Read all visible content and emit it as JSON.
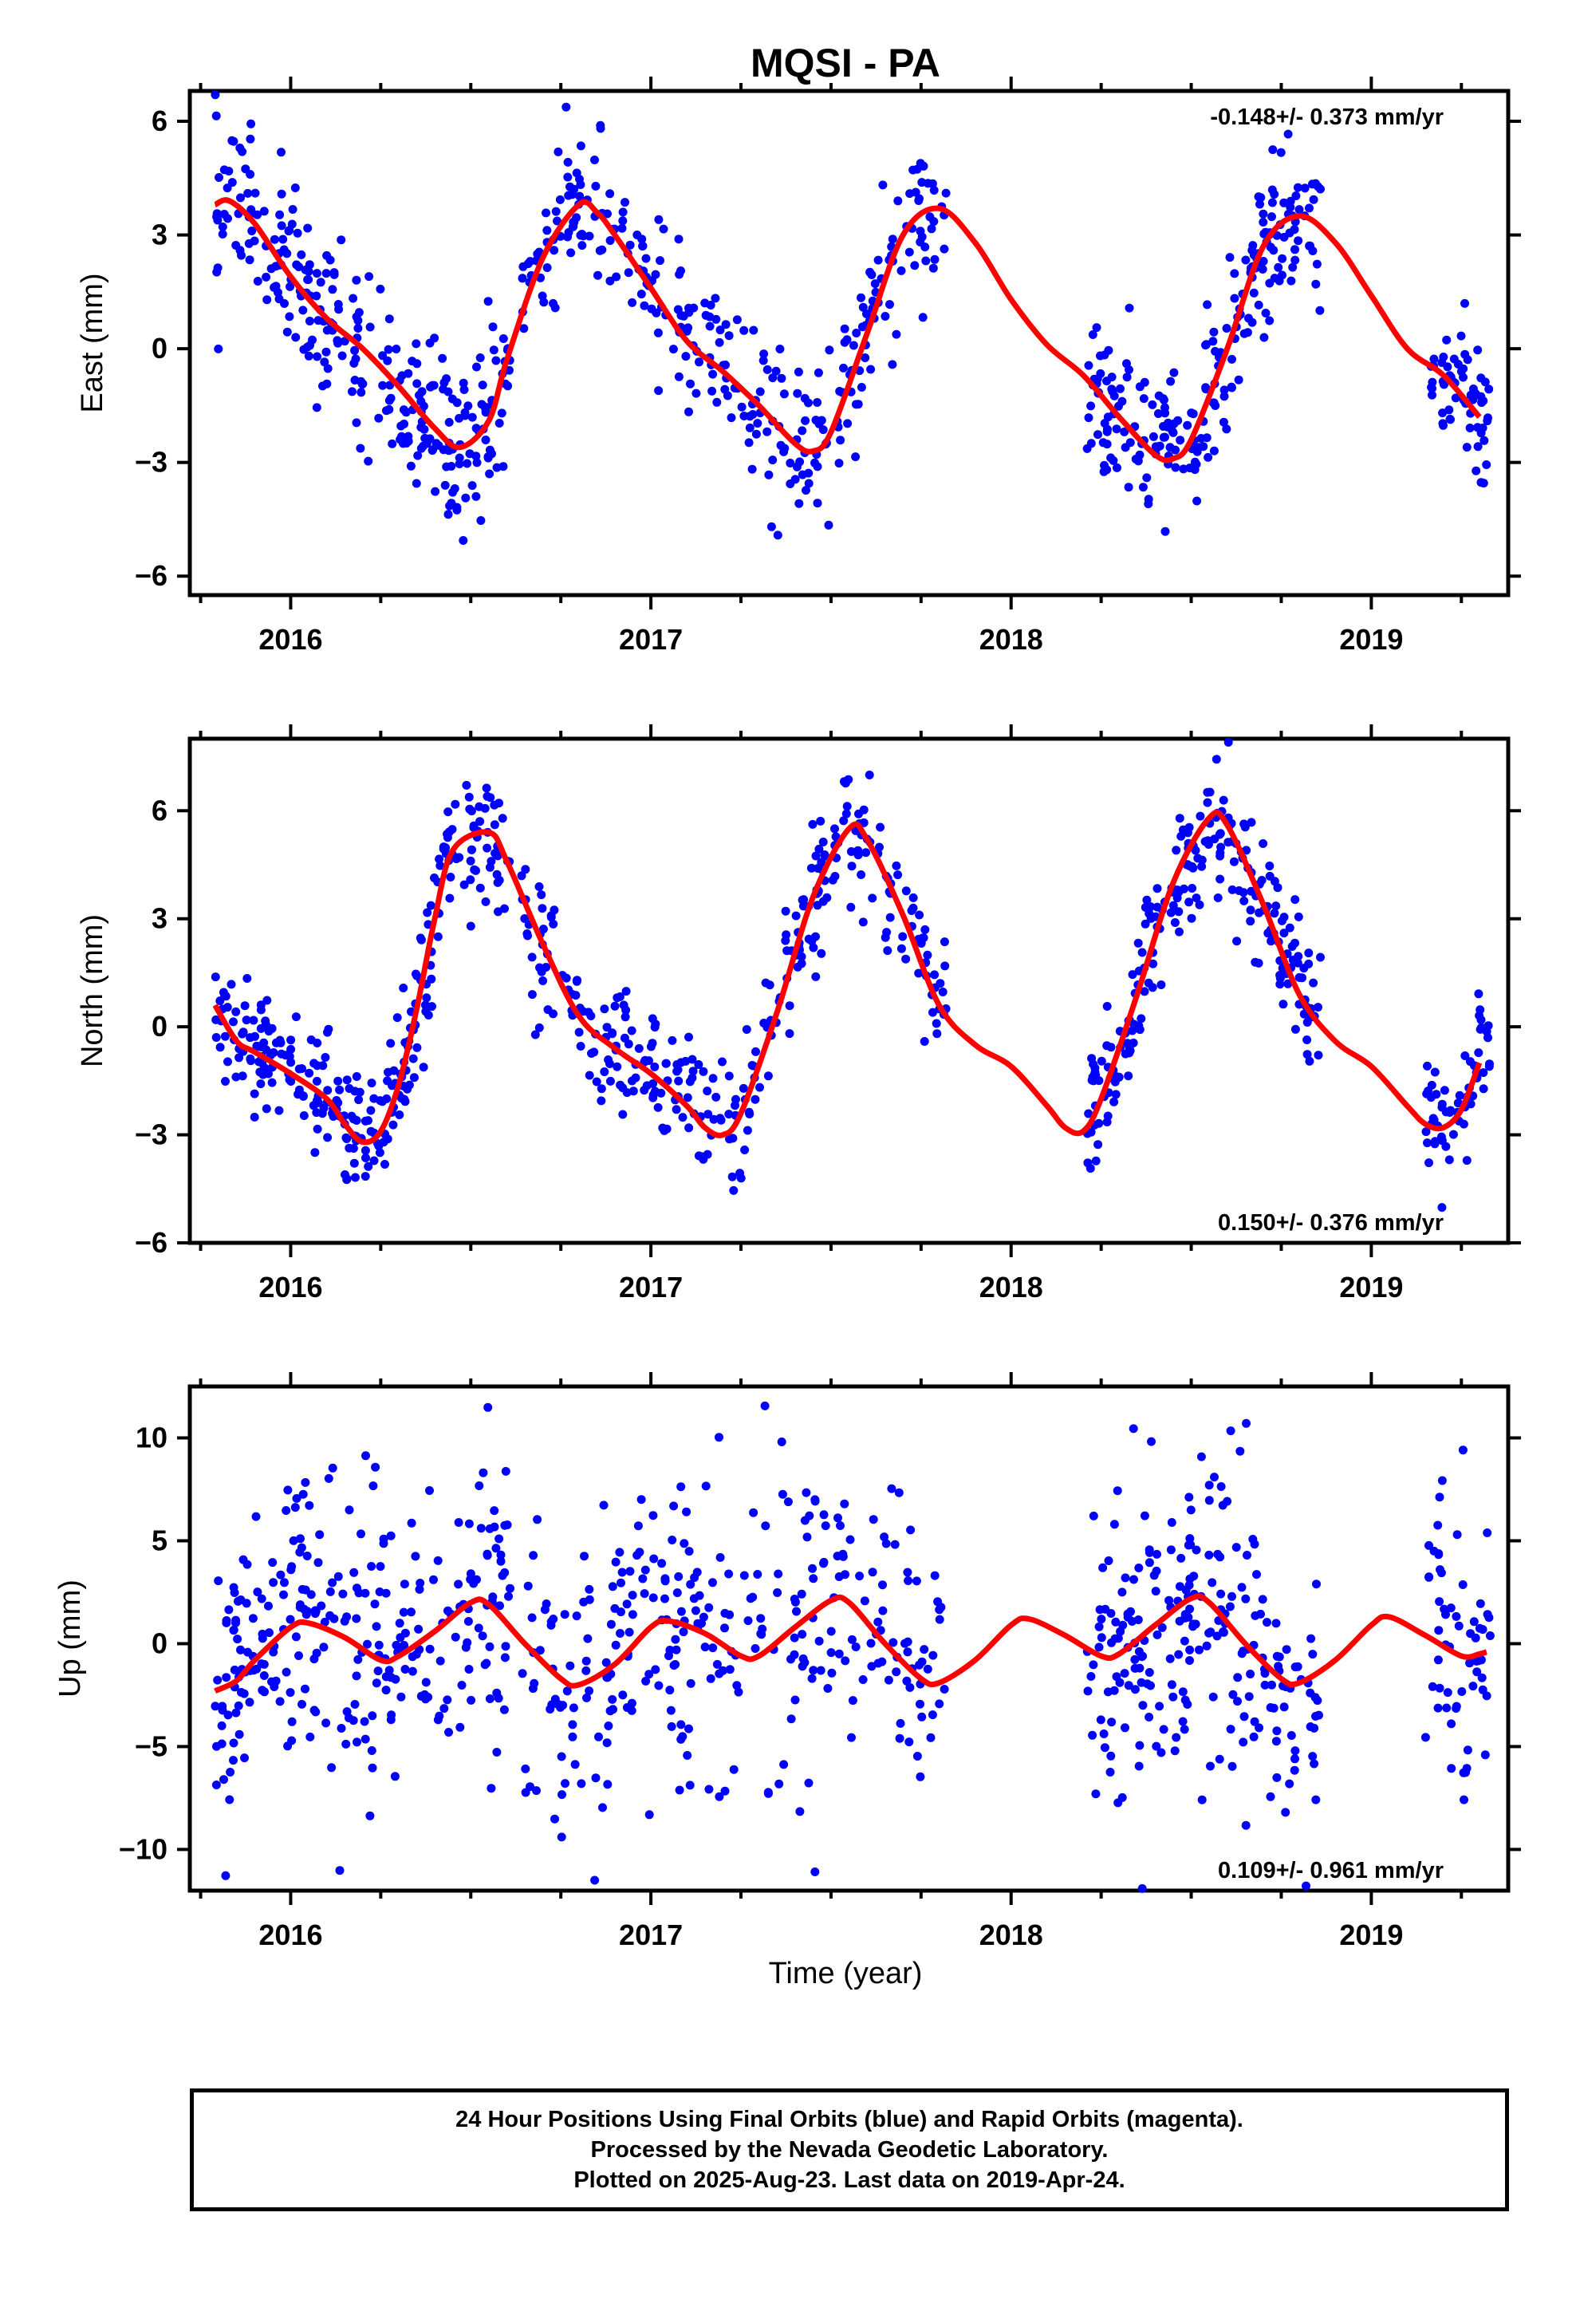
{
  "title": "MQSI - PA",
  "colors": {
    "final_orbits": "#0000ff",
    "rapid_orbits": "#ff00ff",
    "model": "#ff0000",
    "frame": "#000000"
  },
  "chart_data": [
    {
      "type": "scatter",
      "ylabel": "East (mm)",
      "xlabel": "",
      "rate": "-0.148+/- 0.373 mm/yr",
      "rate_position": "top-right",
      "xlim": [
        2015.72,
        2019.38
      ],
      "ylim": [
        -6.5,
        6.8
      ],
      "yticks": [
        -6,
        -3,
        0,
        3,
        6
      ],
      "xtick_labels": [
        "2016",
        "2017",
        "2018",
        "2019"
      ],
      "grid": false,
      "model": [
        [
          2015.79,
          3.8
        ],
        [
          2015.83,
          3.9
        ],
        [
          2015.9,
          3.3
        ],
        [
          2016.0,
          1.9
        ],
        [
          2016.1,
          0.8
        ],
        [
          2016.2,
          0.0
        ],
        [
          2016.3,
          -1.0
        ],
        [
          2016.4,
          -2.1
        ],
        [
          2016.47,
          -2.6
        ],
        [
          2016.55,
          -1.9
        ],
        [
          2016.6,
          -0.3
        ],
        [
          2016.7,
          2.4
        ],
        [
          2016.8,
          3.8
        ],
        [
          2016.85,
          3.6
        ],
        [
          2016.9,
          3.0
        ],
        [
          2017.0,
          1.6
        ],
        [
          2017.1,
          0.2
        ],
        [
          2017.2,
          -0.6
        ],
        [
          2017.3,
          -1.5
        ],
        [
          2017.4,
          -2.5
        ],
        [
          2017.45,
          -2.7
        ],
        [
          2017.5,
          -2.2
        ],
        [
          2017.6,
          0.4
        ],
        [
          2017.7,
          3.0
        ],
        [
          2017.8,
          3.7
        ],
        [
          2017.9,
          2.8
        ],
        [
          2018.0,
          1.3
        ],
        [
          2018.1,
          0.1
        ],
        [
          2018.2,
          -0.7
        ],
        [
          2018.3,
          -1.8
        ],
        [
          2018.4,
          -2.8
        ],
        [
          2018.45,
          -2.9
        ],
        [
          2018.5,
          -2.4
        ],
        [
          2018.6,
          0.0
        ],
        [
          2018.7,
          2.7
        ],
        [
          2018.8,
          3.5
        ],
        [
          2018.9,
          2.8
        ],
        [
          2019.0,
          1.4
        ],
        [
          2019.1,
          0.0
        ],
        [
          2019.2,
          -0.7
        ],
        [
          2019.3,
          -1.8
        ]
      ],
      "data_segments": [
        {
          "start": 2015.79,
          "end": 2016.61,
          "spread": 1.1,
          "count": 280
        },
        {
          "start": 2016.64,
          "end": 2017.82,
          "spread": 1.0,
          "count": 300
        },
        {
          "start": 2018.21,
          "end": 2018.86,
          "spread": 1.0,
          "count": 230
        },
        {
          "start": 2019.15,
          "end": 2019.33,
          "spread": 1.0,
          "count": 60
        }
      ]
    },
    {
      "type": "scatter",
      "ylabel": "North (mm)",
      "xlabel": "",
      "rate": "0.150+/- 0.376 mm/yr",
      "rate_position": "bottom-right",
      "xlim": [
        2015.72,
        2019.38
      ],
      "ylim": [
        -6.0,
        8.0
      ],
      "yticks": [
        -6,
        -3,
        0,
        3,
        6
      ],
      "xtick_labels": [
        "2016",
        "2017",
        "2018",
        "2019"
      ],
      "grid": false,
      "model": [
        [
          2015.79,
          0.6
        ],
        [
          2015.85,
          -0.4
        ],
        [
          2015.9,
          -0.7
        ],
        [
          2016.0,
          -1.3
        ],
        [
          2016.1,
          -2.0
        ],
        [
          2016.15,
          -2.7
        ],
        [
          2016.2,
          -3.2
        ],
        [
          2016.25,
          -2.9
        ],
        [
          2016.3,
          -1.6
        ],
        [
          2016.35,
          0.5
        ],
        [
          2016.4,
          3.0
        ],
        [
          2016.45,
          4.9
        ],
        [
          2016.55,
          5.4
        ],
        [
          2016.6,
          4.6
        ],
        [
          2016.7,
          2.3
        ],
        [
          2016.8,
          0.3
        ],
        [
          2016.9,
          -0.6
        ],
        [
          2017.0,
          -1.3
        ],
        [
          2017.1,
          -2.2
        ],
        [
          2017.15,
          -2.8
        ],
        [
          2017.2,
          -3.0
        ],
        [
          2017.25,
          -2.4
        ],
        [
          2017.35,
          0.4
        ],
        [
          2017.45,
          3.6
        ],
        [
          2017.55,
          5.5
        ],
        [
          2017.6,
          5.2
        ],
        [
          2017.7,
          3.1
        ],
        [
          2017.8,
          0.6
        ],
        [
          2017.9,
          -0.5
        ],
        [
          2018.0,
          -1.1
        ],
        [
          2018.1,
          -2.2
        ],
        [
          2018.15,
          -2.8
        ],
        [
          2018.2,
          -2.9
        ],
        [
          2018.25,
          -2.0
        ],
        [
          2018.35,
          0.9
        ],
        [
          2018.45,
          4.0
        ],
        [
          2018.55,
          5.8
        ],
        [
          2018.6,
          5.6
        ],
        [
          2018.7,
          3.4
        ],
        [
          2018.8,
          0.9
        ],
        [
          2018.9,
          -0.4
        ],
        [
          2019.0,
          -1.1
        ],
        [
          2019.1,
          -2.2
        ],
        [
          2019.15,
          -2.7
        ],
        [
          2019.2,
          -2.8
        ],
        [
          2019.25,
          -2.3
        ],
        [
          2019.3,
          -1.0
        ]
      ],
      "data_segments": [
        {
          "start": 2015.79,
          "end": 2016.61,
          "spread": 0.9,
          "count": 280
        },
        {
          "start": 2016.64,
          "end": 2017.82,
          "spread": 0.9,
          "count": 300
        },
        {
          "start": 2018.21,
          "end": 2018.86,
          "spread": 0.9,
          "count": 230
        },
        {
          "start": 2019.15,
          "end": 2019.33,
          "spread": 0.9,
          "count": 60
        }
      ]
    },
    {
      "type": "scatter",
      "ylabel": "Up (mm)",
      "xlabel": "Time (year)",
      "rate": "0.109+/- 0.961 mm/yr",
      "rate_position": "bottom-right",
      "xlim": [
        2015.72,
        2019.38
      ],
      "ylim": [
        -12.0,
        12.5
      ],
      "yticks": [
        -10,
        -5,
        0,
        5,
        10
      ],
      "xtick_labels": [
        "2016",
        "2017",
        "2018",
        "2019"
      ],
      "grid": false,
      "model": [
        [
          2015.79,
          -2.3
        ],
        [
          2015.85,
          -1.8
        ],
        [
          2015.9,
          -0.8
        ],
        [
          2016.0,
          0.8
        ],
        [
          2016.05,
          1.0
        ],
        [
          2016.15,
          0.3
        ],
        [
          2016.25,
          -0.8
        ],
        [
          2016.3,
          -0.6
        ],
        [
          2016.4,
          0.6
        ],
        [
          2016.5,
          2.0
        ],
        [
          2016.55,
          1.9
        ],
        [
          2016.65,
          0.0
        ],
        [
          2016.75,
          -1.7
        ],
        [
          2016.8,
          -2.0
        ],
        [
          2016.9,
          -1.0
        ],
        [
          2017.0,
          0.8
        ],
        [
          2017.05,
          1.1
        ],
        [
          2017.15,
          0.5
        ],
        [
          2017.25,
          -0.6
        ],
        [
          2017.3,
          -0.6
        ],
        [
          2017.4,
          0.8
        ],
        [
          2017.5,
          2.1
        ],
        [
          2017.55,
          2.0
        ],
        [
          2017.65,
          0.0
        ],
        [
          2017.75,
          -1.7
        ],
        [
          2017.8,
          -1.9
        ],
        [
          2017.9,
          -0.8
        ],
        [
          2018.0,
          0.9
        ],
        [
          2018.05,
          1.2
        ],
        [
          2018.15,
          0.4
        ],
        [
          2018.25,
          -0.6
        ],
        [
          2018.3,
          -0.5
        ],
        [
          2018.4,
          0.9
        ],
        [
          2018.5,
          2.2
        ],
        [
          2018.55,
          2.0
        ],
        [
          2018.65,
          0.0
        ],
        [
          2018.75,
          -1.7
        ],
        [
          2018.8,
          -1.9
        ],
        [
          2018.9,
          -0.8
        ],
        [
          2019.0,
          0.9
        ],
        [
          2019.05,
          1.3
        ],
        [
          2019.15,
          0.4
        ],
        [
          2019.25,
          -0.6
        ],
        [
          2019.3,
          -0.5
        ],
        [
          2019.32,
          -0.4
        ]
      ],
      "data_segments": [
        {
          "start": 2015.79,
          "end": 2016.61,
          "spread": 3.8,
          "count": 280
        },
        {
          "start": 2016.64,
          "end": 2017.82,
          "spread": 3.8,
          "count": 300
        },
        {
          "start": 2018.21,
          "end": 2018.86,
          "spread": 3.8,
          "count": 230
        },
        {
          "start": 2019.15,
          "end": 2019.33,
          "spread": 3.8,
          "count": 60
        }
      ]
    }
  ],
  "footer": {
    "line1": "24 Hour Positions Using Final Orbits (blue) and Rapid Orbits (magenta).",
    "line2": "Processed by the Nevada Geodetic Laboratory.",
    "line3": "Plotted on 2025-Aug-23. Last data on 2019-Apr-24."
  }
}
